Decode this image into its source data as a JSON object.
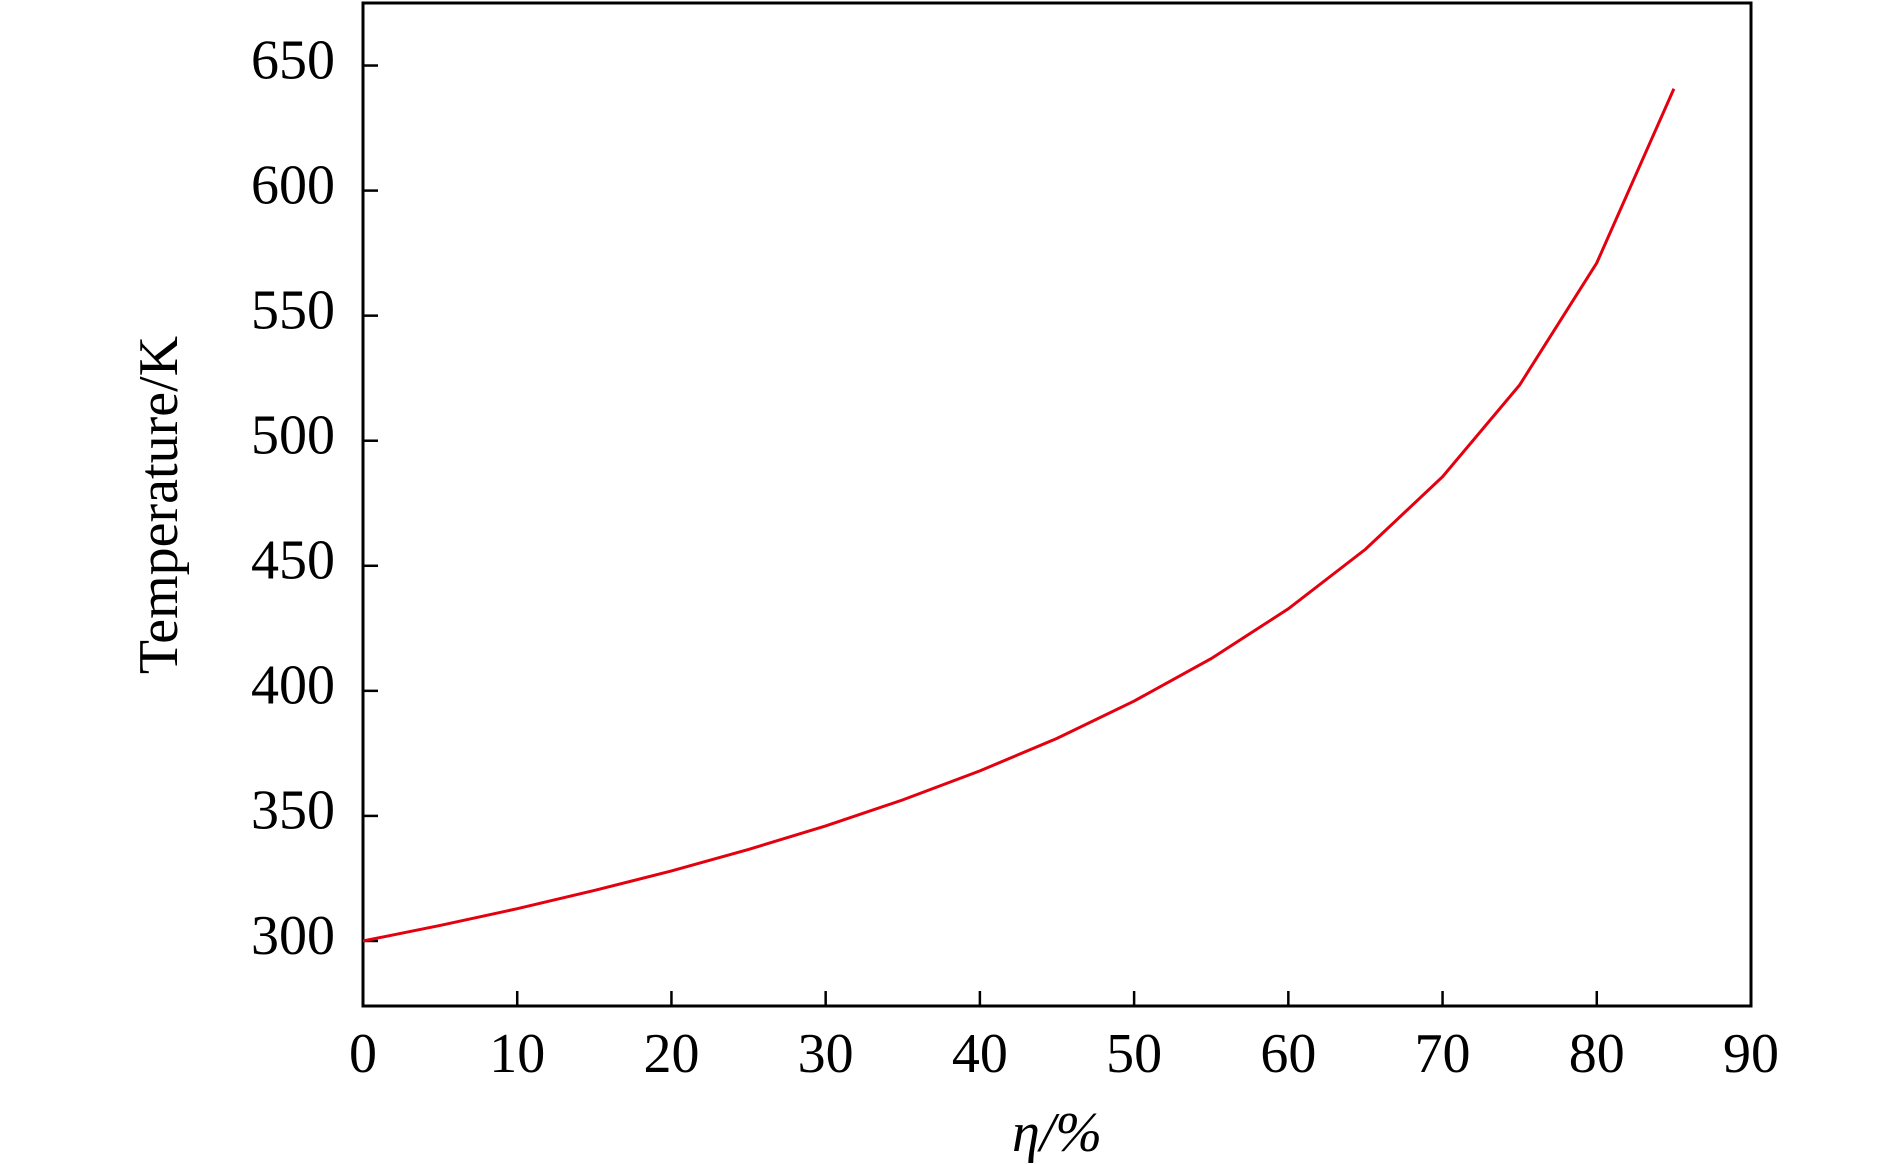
{
  "chart_data": {
    "type": "line",
    "x_label": "η/%",
    "y_label": "Temperature/K",
    "x": [
      0,
      5,
      10,
      15,
      20,
      25,
      30,
      35,
      40,
      45,
      50,
      55,
      60,
      65,
      70,
      75,
      80,
      85
    ],
    "series": [
      {
        "color": "#e3000f",
        "values": [
          300,
          306.2,
          312.9,
          320.2,
          328.0,
          336.6,
          346.0,
          356.4,
          368.0,
          381.0,
          395.9,
          412.9,
          432.8,
          456.6,
          485.6,
          522.3,
          571.1,
          640.7
        ]
      }
    ],
    "xlim": [
      0,
      90
    ],
    "xticks": [
      0,
      10,
      20,
      30,
      40,
      50,
      60,
      70,
      80,
      90
    ],
    "ylim": [
      274,
      675
    ],
    "yticks": [
      300,
      350,
      400,
      450,
      500,
      550,
      600,
      650
    ],
    "grid": false
  }
}
